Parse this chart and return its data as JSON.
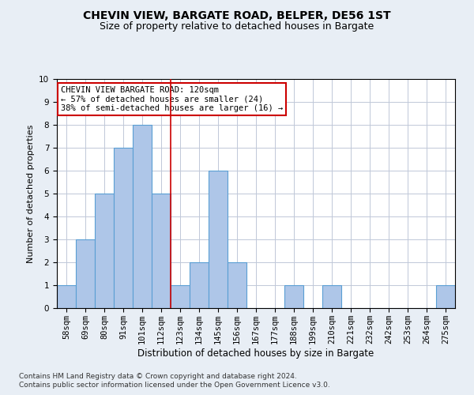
{
  "title1": "CHEVIN VIEW, BARGATE ROAD, BELPER, DE56 1ST",
  "title2": "Size of property relative to detached houses in Bargate",
  "xlabel": "Distribution of detached houses by size in Bargate",
  "ylabel": "Number of detached properties",
  "categories": [
    "58sqm",
    "69sqm",
    "80sqm",
    "91sqm",
    "101sqm",
    "112sqm",
    "123sqm",
    "134sqm",
    "145sqm",
    "156sqm",
    "167sqm",
    "177sqm",
    "188sqm",
    "199sqm",
    "210sqm",
    "221sqm",
    "232sqm",
    "242sqm",
    "253sqm",
    "264sqm",
    "275sqm"
  ],
  "values": [
    1,
    3,
    5,
    7,
    8,
    5,
    1,
    2,
    6,
    2,
    0,
    0,
    1,
    0,
    1,
    0,
    0,
    0,
    0,
    0,
    1
  ],
  "bar_color": "#aec6e8",
  "bar_edge_color": "#5a9fd4",
  "bar_edge_width": 0.8,
  "reference_line_x": 5.5,
  "reference_line_color": "#cc0000",
  "ylim": [
    0,
    10
  ],
  "yticks": [
    0,
    1,
    2,
    3,
    4,
    5,
    6,
    7,
    8,
    9,
    10
  ],
  "annotation_box_text": "CHEVIN VIEW BARGATE ROAD: 120sqm\n← 57% of detached houses are smaller (24)\n38% of semi-detached houses are larger (16) →",
  "annotation_box_color": "#ffffff",
  "annotation_box_edge_color": "#cc0000",
  "footer1": "Contains HM Land Registry data © Crown copyright and database right 2024.",
  "footer2": "Contains public sector information licensed under the Open Government Licence v3.0.",
  "bg_color": "#e8eef5",
  "plot_bg_color": "#ffffff",
  "title1_fontsize": 10,
  "title2_fontsize": 9,
  "xlabel_fontsize": 8.5,
  "ylabel_fontsize": 8,
  "tick_fontsize": 7.5,
  "annotation_fontsize": 7.5,
  "footer_fontsize": 6.5
}
